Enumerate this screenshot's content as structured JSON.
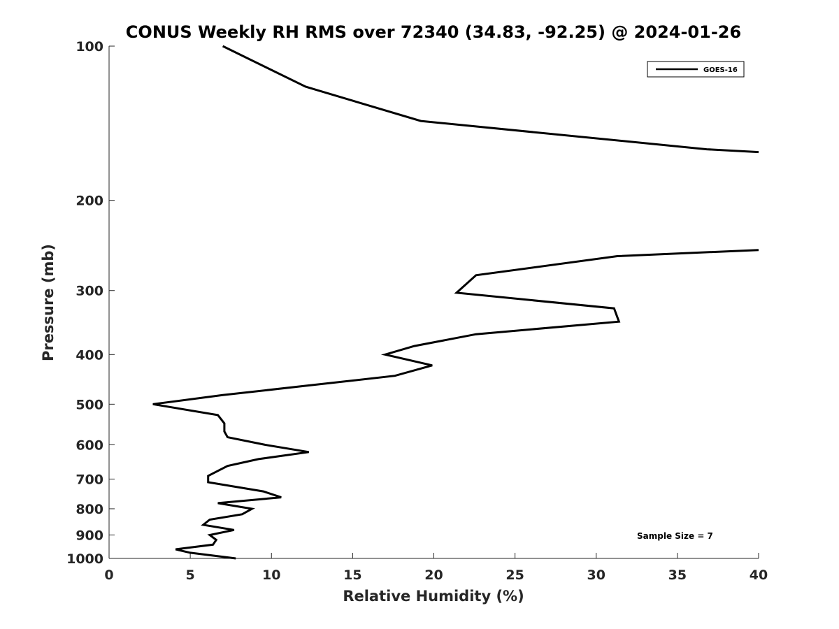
{
  "chart_data": {
    "type": "line",
    "title": "CONUS Weekly RH RMS over 72340 (34.83, -92.25) @ 2024-01-26",
    "xlabel": "Relative Humidity (%)",
    "ylabel": "Pressure (mb)",
    "xlim": [
      0,
      40
    ],
    "ylim": [
      100,
      1000
    ],
    "y_scale": "log",
    "y_reversed": true,
    "grid": false,
    "legend_position": "top-right",
    "x_ticks": [
      "0",
      "5",
      "10",
      "15",
      "20",
      "25",
      "30",
      "35",
      "40"
    ],
    "y_ticks": [
      "100",
      "200",
      "300",
      "400",
      "500",
      "600",
      "700",
      "800",
      "900",
      "1000"
    ],
    "series": [
      {
        "name": "GOES-16",
        "color": "#000000",
        "segments": [
          {
            "x": [
              7.0,
              12.1,
              19.2,
              36.8,
              40.0
            ],
            "y": [
              100,
              120,
              140,
              159,
              161
            ]
          },
          {
            "x": [
              40.0,
              31.3,
              22.6,
              21.4,
              31.1,
              31.4,
              22.6,
              18.8,
              17.0,
              19.9,
              17.6,
              12.2,
              7.0,
              2.7,
              6.7,
              7.1,
              7.1,
              7.3,
              9.6,
              12.3,
              9.2,
              7.3,
              6.1,
              6.1,
              9.5,
              10.6,
              6.7,
              8.8,
              8.2,
              6.2,
              5.8,
              7.7,
              6.2,
              6.6,
              6.4,
              4.1,
              5.0,
              7.8
            ],
            "y": [
              250,
              257,
              280,
              303,
              325,
              345,
              365,
              385,
              400,
              420,
              440,
              460,
              480,
              500,
              525,
              545,
              565,
              580,
              600,
              620,
              640,
              660,
              690,
              710,
              740,
              760,
              780,
              800,
              820,
              840,
              860,
              880,
              900,
              920,
              940,
              960,
              975,
              1000
            ]
          }
        ]
      }
    ],
    "annotation": "Sample Size = 7"
  }
}
